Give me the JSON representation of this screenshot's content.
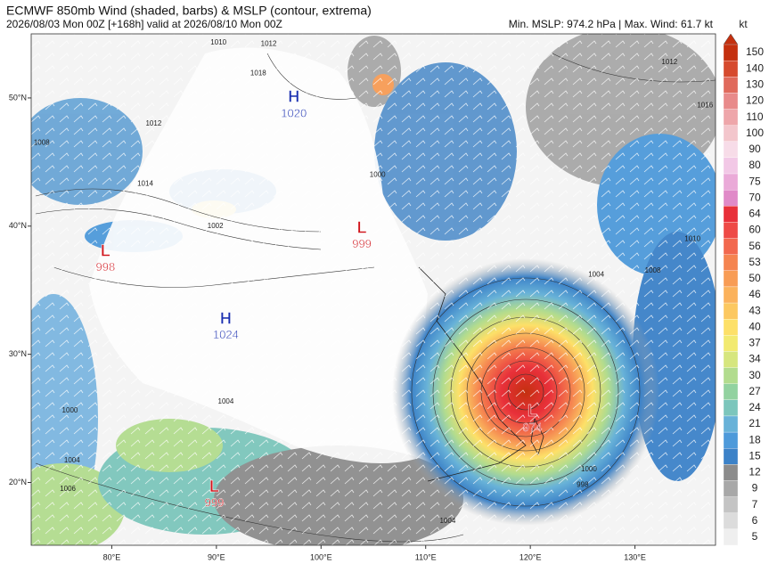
{
  "header": {
    "title": "ECMWF 850mb Wind (shaded, barbs) & MSLP (contour, extrema)",
    "subtitle": "2026/08/03 Mon 00Z [+168h] valid at 2026/08/10 Mon 00Z",
    "stats": "Min. MSLP: 974.2 hPa | Max. Wind: 61.7 kt"
  },
  "map": {
    "lonlim": [
      72.3,
      137.7
    ],
    "latlim": [
      15.1,
      55
    ],
    "lonticks": [
      {
        "value": 80,
        "label": "80°E"
      },
      {
        "value": 90,
        "label": "90°E"
      },
      {
        "value": 100,
        "label": "100°E"
      },
      {
        "value": 110,
        "label": "110°E"
      },
      {
        "value": 120,
        "label": "120°E"
      },
      {
        "value": 130,
        "label": "130°E"
      }
    ],
    "latticks": [
      {
        "value": 20,
        "label": "20°N"
      },
      {
        "value": 30,
        "label": "30°N"
      },
      {
        "value": 40,
        "label": "40°N"
      },
      {
        "value": 50,
        "label": "50°N"
      }
    ],
    "extrema": [
      {
        "letter": "H",
        "value": 1020,
        "lon": 97.4,
        "lat": 50.0,
        "color": "#1a2fb0"
      },
      {
        "letter": "L",
        "value": 999,
        "lon": 103.9,
        "lat": 39.8,
        "color": "#d0151c"
      },
      {
        "letter": "L",
        "value": 998,
        "lon": 79.4,
        "lat": 38.0,
        "color": "#d0151c"
      },
      {
        "letter": "H",
        "value": 1024,
        "lon": 90.9,
        "lat": 32.7,
        "color": "#1a2fb0"
      },
      {
        "letter": "L",
        "value": 974,
        "lon": 120.2,
        "lat": 25.5,
        "color": "#d0151c"
      },
      {
        "letter": "L",
        "value": 999,
        "lon": 89.8,
        "lat": 19.6,
        "color": "#d0151c"
      }
    ],
    "contour_labels": [
      {
        "value": 1010,
        "lon": 90.2,
        "lat": 54.3
      },
      {
        "value": 1012,
        "lon": 95.0,
        "lat": 54.2
      },
      {
        "value": 1018,
        "lon": 94.0,
        "lat": 51.9
      },
      {
        "value": 1012,
        "lon": 84.0,
        "lat": 48.0
      },
      {
        "value": 1008,
        "lon": 73.3,
        "lat": 46.5
      },
      {
        "value": 1014,
        "lon": 83.2,
        "lat": 43.3
      },
      {
        "value": 1002,
        "lon": 89.9,
        "lat": 40.0
      },
      {
        "value": 1004,
        "lon": 126.3,
        "lat": 36.2
      },
      {
        "value": 1008,
        "lon": 131.7,
        "lat": 36.5
      },
      {
        "value": 1010,
        "lon": 135.5,
        "lat": 39.0
      },
      {
        "value": 1012,
        "lon": 133.3,
        "lat": 52.8
      },
      {
        "value": 1000,
        "lon": 105.4,
        "lat": 44.0
      },
      {
        "value": 1004,
        "lon": 90.9,
        "lat": 26.3
      },
      {
        "value": 1000,
        "lon": 76.0,
        "lat": 25.6
      },
      {
        "value": 1004,
        "lon": 76.2,
        "lat": 21.7
      },
      {
        "value": 1006,
        "lon": 75.8,
        "lat": 19.5
      },
      {
        "value": 1004,
        "lon": 112.1,
        "lat": 17.0
      },
      {
        "value": 998,
        "lon": 125.0,
        "lat": 19.8
      },
      {
        "value": 1000,
        "lon": 125.6,
        "lat": 21.0
      },
      {
        "value": 1016,
        "lon": 136.7,
        "lat": 49.4
      }
    ]
  },
  "colorbar": {
    "unit": "kt",
    "levels": [
      150,
      140,
      130,
      120,
      110,
      100,
      90,
      80,
      75,
      70,
      64,
      60,
      56,
      53,
      50,
      46,
      43,
      40,
      37,
      34,
      30,
      27,
      24,
      21,
      18,
      15,
      12,
      9,
      7,
      6,
      5
    ],
    "colors": [
      "#c4300f",
      "#d64a2e",
      "#e06a5c",
      "#e88a8a",
      "#eea6aa",
      "#f3c6cc",
      "#f7dce8",
      "#f2c8e6",
      "#eaaad8",
      "#e08ac8",
      "#e8303a",
      "#ee4a46",
      "#f2684e",
      "#f58450",
      "#f89c55",
      "#fbb25c",
      "#fcc860",
      "#fde068",
      "#f2ea70",
      "#d6e67e",
      "#b2dc8e",
      "#92d2a0",
      "#7cc6bc",
      "#68b2d8",
      "#4e9ada",
      "#3c82c8",
      "#8c8c8c",
      "#a8a8a8",
      "#c4c4c4",
      "#dcdcdc",
      "#efefef"
    ]
  }
}
